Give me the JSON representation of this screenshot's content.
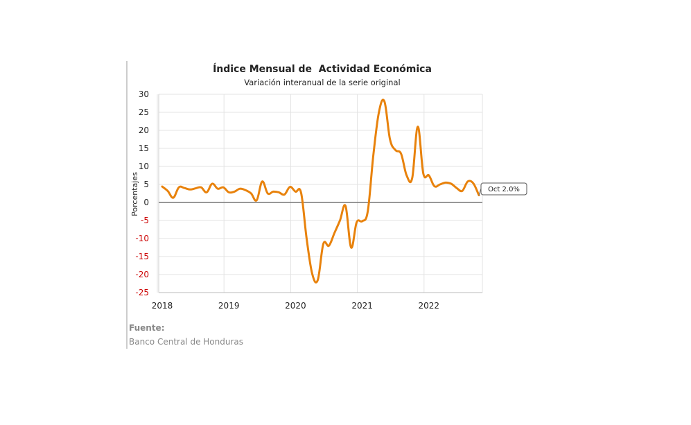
{
  "chart_data": {
    "type": "line",
    "title": "Índice Mensual de  Actividad Económica",
    "subtitle": "Variación interanual de la serie original",
    "ylabel": "Porcentajes",
    "xlabel": "",
    "ylim": [
      -25,
      30
    ],
    "yticks": [
      "30",
      "25",
      "20",
      "15",
      "10",
      "5",
      "0",
      "-5",
      "-10",
      "-15",
      "-20",
      "-25"
    ],
    "yticks_values": [
      30,
      25,
      20,
      15,
      10,
      5,
      0,
      -5,
      -10,
      -15,
      -20,
      -25
    ],
    "xticks": [
      "2018",
      "2019",
      "2020",
      "2021",
      "2022"
    ],
    "grid": true,
    "colors": {
      "line": "#E8820C",
      "negative_tick": "#cc0000",
      "positive_tick": "#222222",
      "zero_line": "#777777",
      "grid": "#e3e3e3"
    },
    "series": [
      {
        "values": [
          4.4,
          3.2,
          1.3,
          4.2,
          4.0,
          3.6,
          3.9,
          4.2,
          2.8,
          5.2,
          3.8,
          4.2,
          2.8,
          3.0,
          3.8,
          3.4,
          2.5,
          0.6,
          5.8,
          2.5,
          3.0,
          2.8,
          2.2,
          4.3,
          3.0,
          2.7,
          -10.0,
          -19.8,
          -21.5,
          -11.5,
          -12.0,
          -8.5,
          -5.0,
          -1.0,
          -12.5,
          -5.5,
          -5.2,
          -2.5,
          13.0,
          25.0,
          28.0,
          17.5,
          14.5,
          13.5,
          7.5,
          6.8,
          21.0,
          8.0,
          7.5,
          4.5,
          5.0,
          5.5,
          5.2,
          4.0,
          3.2,
          5.8,
          5.3,
          2.0
        ]
      }
    ],
    "annotation": "Oct 2.0%"
  },
  "source": {
    "heading": "Fuente:",
    "text": "Banco Central de Honduras"
  }
}
